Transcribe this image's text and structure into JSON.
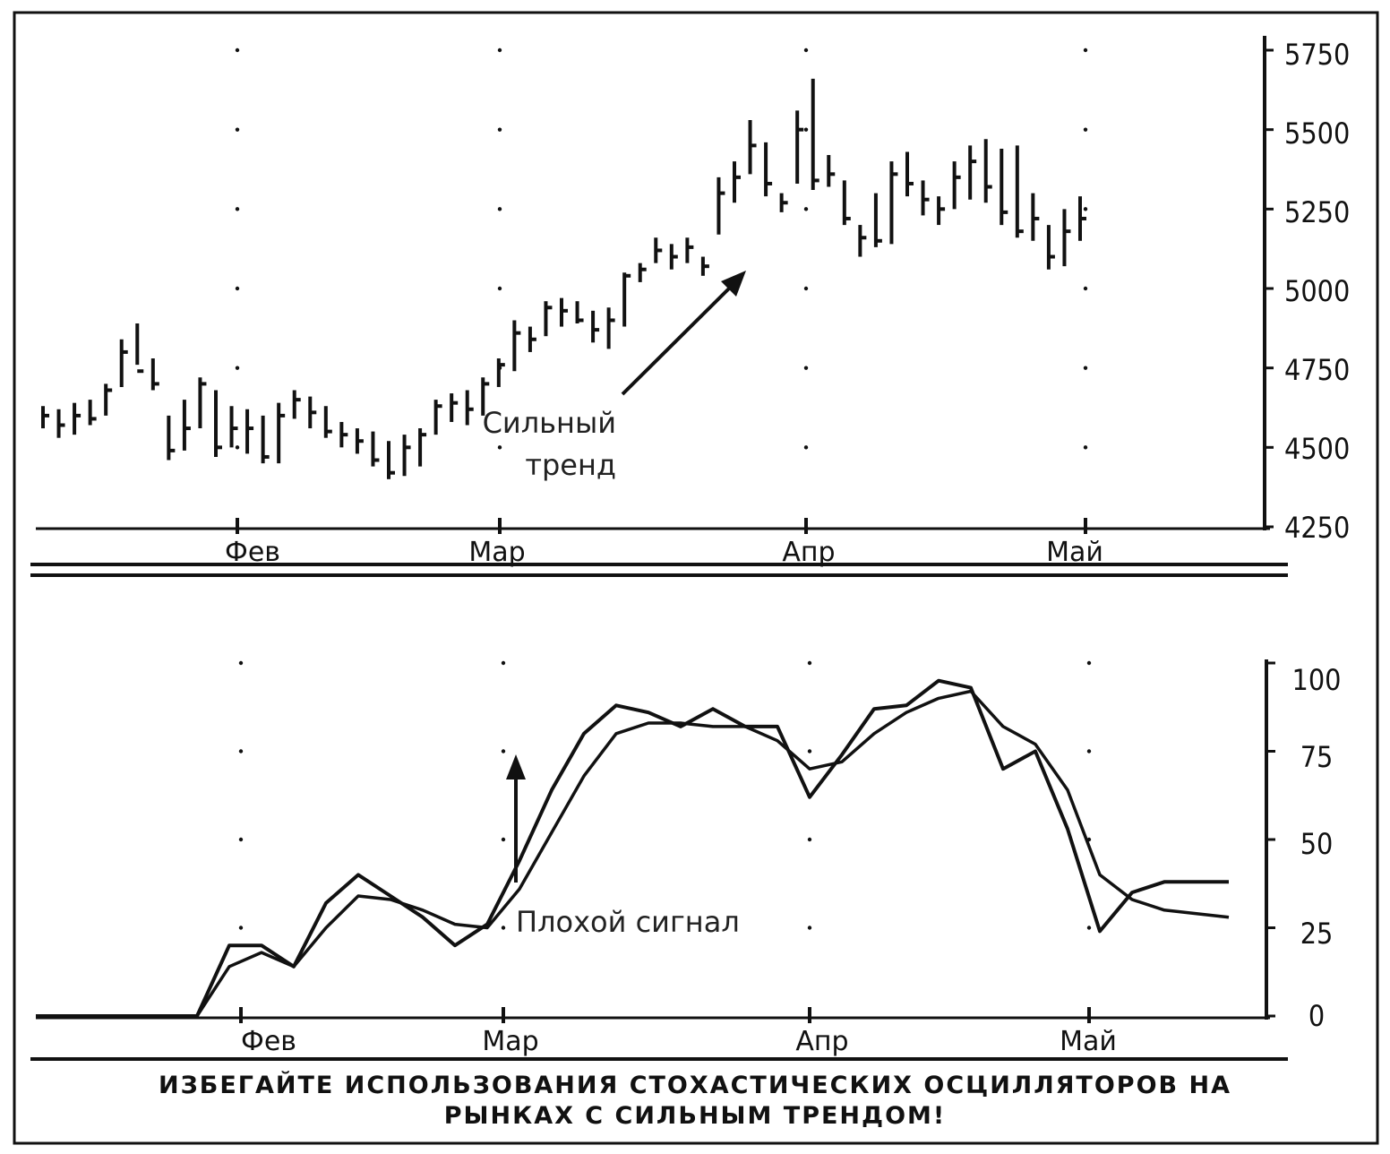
{
  "chart_data": [
    {
      "type": "bar",
      "chart_style": "ohlc",
      "title": "",
      "y_ticks": [
        4250,
        4500,
        4750,
        5000,
        5250,
        5500,
        5750
      ],
      "ylim": [
        4250,
        5750
      ],
      "x_ticks": [
        "Фев",
        "Мар",
        "Апр",
        "Май"
      ],
      "annotation": {
        "line1": "Сильный",
        "line2": "тренд"
      },
      "bars": [
        [
          4560,
          4630,
          4600
        ],
        [
          4530,
          4620,
          4570
        ],
        [
          4540,
          4640,
          4600
        ],
        [
          4570,
          4650,
          4590
        ],
        [
          4600,
          4700,
          4680
        ],
        [
          4690,
          4840,
          4800
        ],
        [
          4760,
          4890,
          4740
        ],
        [
          4680,
          4780,
          4700
        ],
        [
          4460,
          4600,
          4490
        ],
        [
          4490,
          4650,
          4560
        ],
        [
          4560,
          4720,
          4700
        ],
        [
          4470,
          4680,
          4500
        ],
        [
          4500,
          4630,
          4560
        ],
        [
          4480,
          4620,
          4560
        ],
        [
          4450,
          4600,
          4470
        ],
        [
          4450,
          4640,
          4600
        ],
        [
          4590,
          4680,
          4650
        ],
        [
          4560,
          4660,
          4610
        ],
        [
          4530,
          4630,
          4550
        ],
        [
          4500,
          4580,
          4540
        ],
        [
          4480,
          4560,
          4520
        ],
        [
          4440,
          4550,
          4460
        ],
        [
          4400,
          4520,
          4420
        ],
        [
          4410,
          4540,
          4500
        ],
        [
          4440,
          4560,
          4540
        ],
        [
          4540,
          4650,
          4630
        ],
        [
          4580,
          4670,
          4640
        ],
        [
          4570,
          4680,
          4620
        ],
        [
          4600,
          4720,
          4700
        ],
        [
          4690,
          4780,
          4760
        ],
        [
          4740,
          4900,
          4860
        ],
        [
          4800,
          4880,
          4840
        ],
        [
          4850,
          4960,
          4940
        ],
        [
          4880,
          4970,
          4930
        ],
        [
          4890,
          4960,
          4900
        ],
        [
          4830,
          4930,
          4870
        ],
        [
          4810,
          4940,
          4900
        ],
        [
          4880,
          5050,
          5040
        ],
        [
          5020,
          5080,
          5060
        ],
        [
          5080,
          5160,
          5120
        ],
        [
          5060,
          5140,
          5100
        ],
        [
          5080,
          5160,
          5130
        ],
        [
          5040,
          5100,
          5070
        ],
        [
          5170,
          5350,
          5300
        ],
        [
          5270,
          5400,
          5350
        ],
        [
          5360,
          5530,
          5450
        ],
        [
          5290,
          5460,
          5330
        ],
        [
          5240,
          5300,
          5270
        ],
        [
          5330,
          5560,
          5500
        ],
        [
          5310,
          5660,
          5340
        ],
        [
          5320,
          5420,
          5360
        ],
        [
          5200,
          5340,
          5220
        ],
        [
          5100,
          5200,
          5160
        ],
        [
          5130,
          5300,
          5150
        ],
        [
          5140,
          5400,
          5360
        ],
        [
          5290,
          5430,
          5330
        ],
        [
          5230,
          5340,
          5280
        ],
        [
          5200,
          5290,
          5250
        ],
        [
          5250,
          5400,
          5350
        ],
        [
          5280,
          5450,
          5400
        ],
        [
          5270,
          5470,
          5320
        ],
        [
          5200,
          5440,
          5240
        ],
        [
          5160,
          5450,
          5180
        ],
        [
          5150,
          5300,
          5220
        ],
        [
          5060,
          5200,
          5100
        ],
        [
          5070,
          5250,
          5180
        ],
        [
          5150,
          5290,
          5220
        ]
      ]
    },
    {
      "type": "line",
      "title": "",
      "y_ticks": [
        0,
        25,
        50,
        75,
        100
      ],
      "ylim": [
        0,
        100
      ],
      "x_ticks": [
        "Фев",
        "Мар",
        "Апр",
        "Май"
      ],
      "annotation": {
        "line1": "Плохой сигнал"
      },
      "x": [
        0,
        2,
        4,
        6,
        8,
        10,
        12,
        14,
        16,
        18,
        20,
        22,
        24,
        26,
        28,
        30,
        32,
        34,
        36,
        38,
        40,
        42,
        44,
        46,
        48,
        50,
        52,
        54,
        56,
        58,
        60,
        62,
        64,
        66,
        68,
        70,
        72,
        74
      ],
      "series": [
        {
          "values": [
            0,
            0,
            0,
            0,
            0,
            0,
            20,
            20,
            14,
            32,
            40,
            34,
            28,
            20,
            26,
            44,
            64,
            80,
            88,
            86,
            82,
            87,
            82,
            82,
            62,
            74,
            87,
            88,
            95,
            93,
            70,
            75,
            53,
            24,
            35,
            38,
            38,
            38
          ]
        },
        {
          "values": [
            0,
            0,
            0,
            0,
            0,
            0,
            14,
            18,
            14,
            25,
            34,
            33,
            30,
            26,
            25,
            36,
            52,
            68,
            80,
            83,
            83,
            82,
            82,
            78,
            70,
            72,
            80,
            86,
            90,
            92,
            82,
            77,
            64,
            40,
            33,
            30,
            29,
            28
          ]
        }
      ]
    }
  ],
  "caption": {
    "line1": "ИЗБЕГАЙТЕ ИСПОЛЬЗОВАНИЯ СТОХАСТИЧЕСКИХ ОСЦИЛЛЯТОРОВ НА",
    "line2": "РЫНКАХ С СИЛЬНЫМ ТРЕНДОМ!"
  }
}
